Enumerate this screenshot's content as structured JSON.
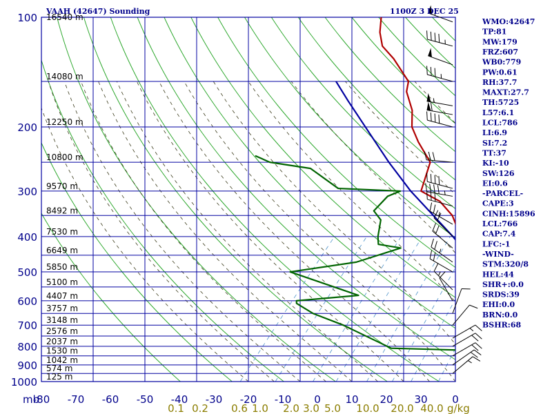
{
  "chart_data": {
    "type": "line",
    "title": "VAAH (42647) Sounding",
    "time_label": "1100Z  3 DEC 25",
    "x_axis": {
      "label_prefix": "mb",
      "range": [
        -80,
        0
      ],
      "ticks": [
        "-80",
        "-70",
        "-60",
        "-50",
        "-40",
        "-30",
        "-20",
        "-10",
        "0",
        "10",
        "20",
        "30",
        "0"
      ]
    },
    "y_axis": {
      "scale": "log",
      "range": [
        1000,
        100
      ],
      "ticks": [
        100,
        200,
        300,
        400,
        500,
        600,
        700,
        800,
        900,
        1000
      ]
    },
    "height_labels": [
      {
        "p": 100,
        "text": "16540 m"
      },
      {
        "p": 150,
        "text": "14080 m"
      },
      {
        "p": 200,
        "text": "12250 m"
      },
      {
        "p": 250,
        "text": "10800 m"
      },
      {
        "p": 300,
        "text": "9570 m"
      },
      {
        "p": 350,
        "text": "8492 m"
      },
      {
        "p": 400,
        "text": "7530 m"
      },
      {
        "p": 450,
        "text": "6649 m"
      },
      {
        "p": 500,
        "text": "5850 m"
      },
      {
        "p": 550,
        "text": "5100 m"
      },
      {
        "p": 600,
        "text": "4407 m"
      },
      {
        "p": 650,
        "text": "3757 m"
      },
      {
        "p": 700,
        "text": "3148 m"
      },
      {
        "p": 750,
        "text": "2576 m"
      },
      {
        "p": 800,
        "text": "2037 m"
      },
      {
        "p": 850,
        "text": "1530 m"
      },
      {
        "p": 900,
        "text": "1042 m"
      },
      {
        "p": 950,
        "text": "574 m"
      },
      {
        "p": 1000,
        "text": "125 m"
      }
    ],
    "mixing_ratio_labels": [
      "0.1",
      "0.2",
      "0.6",
      "1.0",
      "2.0",
      "3.0",
      "5.0",
      "10.0",
      "20.0",
      "40.0"
    ],
    "mixing_ratio_unit": "g/kg",
    "series": [
      {
        "name": "temperature",
        "color": "#b00000",
        "points": [
          [
            1000,
            28.0
          ],
          [
            970,
            26.5
          ],
          [
            940,
            24.0
          ],
          [
            910,
            21.5
          ],
          [
            880,
            18.5
          ],
          [
            850,
            16.0
          ],
          [
            820,
            13.5
          ],
          [
            800,
            12.0
          ],
          [
            790,
            14.5
          ],
          [
            780,
            13.0
          ],
          [
            760,
            11.0
          ],
          [
            700,
            6.0
          ],
          [
            650,
            3.5
          ],
          [
            600,
            0.0
          ],
          [
            580,
            -3.0
          ],
          [
            560,
            -5.0
          ],
          [
            550,
            -9.0
          ],
          [
            500,
            -14.0
          ],
          [
            450,
            -20.0
          ],
          [
            400,
            -25.5
          ],
          [
            350,
            -31.0
          ],
          [
            320,
            -36.0
          ],
          [
            300,
            -41.5
          ],
          [
            250,
            -45.0
          ],
          [
            220,
            -51.0
          ],
          [
            200,
            -55.0
          ],
          [
            180,
            -58.0
          ],
          [
            160,
            -62.5
          ],
          [
            150,
            -64.0
          ],
          [
            130,
            -71.0
          ],
          [
            120,
            -75.5
          ],
          [
            110,
            -78.5
          ],
          [
            100,
            -81.0
          ]
        ]
      },
      {
        "name": "dewpoint",
        "color": "#006400",
        "points": [
          [
            1000,
            9.0
          ],
          [
            990,
            9.5
          ],
          [
            975,
            9.0
          ],
          [
            850,
            6.0
          ],
          [
            820,
            -4.5
          ],
          [
            810,
            -18.5
          ],
          [
            700,
            -32.0
          ],
          [
            650,
            -40.0
          ],
          [
            610,
            -45.0
          ],
          [
            600,
            -45.5
          ],
          [
            580,
            -34.5
          ],
          [
            500,
            -52.0
          ],
          [
            470,
            -41.0
          ],
          [
            430,
            -35.0
          ],
          [
            420,
            -40.0
          ],
          [
            400,
            -41.5
          ],
          [
            360,
            -44.0
          ],
          [
            340,
            -47.0
          ],
          [
            310,
            -47.0
          ],
          [
            300,
            -45.5
          ],
          [
            295,
            -58.0
          ],
          [
            260,
            -67.0
          ],
          [
            250,
            -76.0
          ],
          [
            240,
            -80.0
          ]
        ]
      },
      {
        "name": "parcel",
        "color": "#0000a0",
        "points": [
          [
            1000,
            26.0
          ],
          [
            850,
            15.0
          ],
          [
            766,
            6.0
          ],
          [
            700,
            2.5
          ],
          [
            600,
            -5.0
          ],
          [
            500,
            -15.0
          ],
          [
            400,
            -27.0
          ],
          [
            300,
            -43.5
          ],
          [
            250,
            -53.0
          ],
          [
            200,
            -64.0
          ],
          [
            170,
            -72.0
          ],
          [
            150,
            -78.0
          ]
        ]
      }
    ],
    "indices": [
      "WMO:42647",
      "TP:81",
      "MW:179",
      "FRZ:607",
      "WB0:779",
      "PW:0.61",
      "RH:37.7",
      "MAXT:27.7",
      "TH:5725",
      "L57:6.1",
      "LCL:786",
      "LI:6.9",
      "SI:7.2",
      "TT:37",
      "KI:-10",
      "SW:126",
      "EI:0.6",
      "-PARCEL-",
      "CAPE:3",
      "CINH:15896",
      "LCL:766",
      "CAP:7.4",
      "LFC:-1",
      "-WIND-",
      "STM:320/8",
      "HEL:44",
      "SHR+:0.0",
      "SRDS:39",
      "EHI:0.0",
      "BRN:0.0",
      "BSHR:68"
    ],
    "wind_barbs": [
      {
        "p": 103,
        "dir": 290,
        "kt": 55
      },
      {
        "p": 120,
        "dir": 285,
        "kt": 45
      },
      {
        "p": 135,
        "dir": 290,
        "kt": 50
      },
      {
        "p": 150,
        "dir": 285,
        "kt": 35
      },
      {
        "p": 175,
        "dir": 280,
        "kt": 55
      },
      {
        "p": 185,
        "dir": 280,
        "kt": 60
      },
      {
        "p": 200,
        "dir": 285,
        "kt": 40
      },
      {
        "p": 250,
        "dir": 275,
        "kt": 30
      },
      {
        "p": 295,
        "dir": 285,
        "kt": 40
      },
      {
        "p": 310,
        "dir": 280,
        "kt": 45
      },
      {
        "p": 330,
        "dir": 285,
        "kt": 30
      },
      {
        "p": 370,
        "dir": 300,
        "kt": 25
      },
      {
        "p": 400,
        "dir": 315,
        "kt": 20
      },
      {
        "p": 430,
        "dir": 310,
        "kt": 20
      },
      {
        "p": 470,
        "dir": 305,
        "kt": 25
      },
      {
        "p": 500,
        "dir": 300,
        "kt": 20
      },
      {
        "p": 560,
        "dir": 315,
        "kt": 15
      },
      {
        "p": 600,
        "dir": 330,
        "kt": 10
      },
      {
        "p": 650,
        "dir": 20,
        "kt": 10
      },
      {
        "p": 700,
        "dir": 40,
        "kt": 10
      },
      {
        "p": 760,
        "dir": 60,
        "kt": 15
      },
      {
        "p": 800,
        "dir": 60,
        "kt": 20
      },
      {
        "p": 850,
        "dir": 60,
        "kt": 20
      },
      {
        "p": 900,
        "dir": 55,
        "kt": 20
      },
      {
        "p": 950,
        "dir": 50,
        "kt": 15
      }
    ]
  }
}
